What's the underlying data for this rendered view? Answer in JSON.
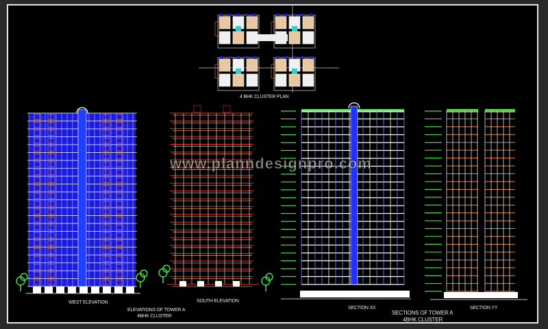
{
  "plan": {
    "title": "4 BHK CLUSTER PLAN"
  },
  "elevations": {
    "west_label": "WEST ELEVATION",
    "south_label": "SOUTH ELEVATION",
    "group_title_1": "ELEVATIONS OF TOWER A",
    "group_title_2": "4BHK CLUSTER"
  },
  "sections": {
    "xx_label": "SECTION XX",
    "yy_label": "SECTION YY",
    "group_title_1": "SECTIONS OF TOWER A",
    "group_title_2": "4BHK CLUSTER"
  },
  "watermark": "www.planndesignpro.com",
  "colors": {
    "background": "#000000",
    "blue": "#1a1ae0",
    "red": "#e03020",
    "orange": "#f08040",
    "green": "#40e040",
    "white": "#ffffff",
    "cyan": "#30d0d0"
  }
}
